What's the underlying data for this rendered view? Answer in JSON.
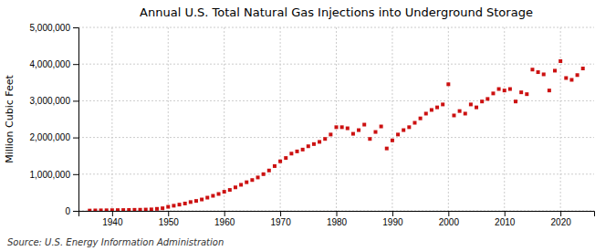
{
  "chart_data": {
    "type": "scatter",
    "title": "Annual U.S. Total Natural Gas Injections into Underground Storage",
    "ylabel": "Million Cubic Feet",
    "annotations": [
      "Source: U.S. Energy Information Administration"
    ],
    "color": "#cc1111",
    "marker": "square",
    "grid": true,
    "xlim": [
      1934,
      2026
    ],
    "ylim": [
      0,
      5000000
    ],
    "xticks": [
      1940,
      1950,
      1960,
      1970,
      1980,
      1990,
      2000,
      2010,
      2020
    ],
    "yticks": [
      0,
      {
        "value": 1000000,
        "label": "1,000,000"
      },
      {
        "value": 2000000,
        "label": "2,000,000"
      },
      {
        "value": 3000000,
        "label": "3,000,000"
      },
      {
        "value": 4000000,
        "label": "4,000,000"
      },
      {
        "value": 5000000,
        "label": "5,000,000"
      }
    ],
    "x": [
      1936,
      1937,
      1938,
      1939,
      1940,
      1941,
      1942,
      1943,
      1944,
      1945,
      1946,
      1947,
      1948,
      1949,
      1950,
      1951,
      1952,
      1953,
      1954,
      1955,
      1956,
      1957,
      1958,
      1959,
      1960,
      1961,
      1962,
      1963,
      1964,
      1965,
      1966,
      1967,
      1968,
      1969,
      1970,
      1971,
      1972,
      1973,
      1974,
      1975,
      1976,
      1977,
      1978,
      1979,
      1980,
      1981,
      1982,
      1983,
      1984,
      1985,
      1986,
      1987,
      1988,
      1989,
      1990,
      1991,
      1992,
      1993,
      1994,
      1995,
      1996,
      1997,
      1998,
      1999,
      2000,
      2001,
      2002,
      2003,
      2004,
      2005,
      2006,
      2007,
      2008,
      2009,
      2010,
      2011,
      2012,
      2013,
      2014,
      2015,
      2016,
      2017,
      2018,
      2019,
      2020,
      2021,
      2022,
      2023,
      2024
    ],
    "values": [
      8000,
      12000,
      14000,
      16000,
      18000,
      20000,
      22000,
      24000,
      28000,
      30000,
      35000,
      40000,
      55000,
      70000,
      110000,
      140000,
      170000,
      200000,
      240000,
      270000,
      310000,
      360000,
      410000,
      460000,
      520000,
      570000,
      640000,
      710000,
      780000,
      840000,
      910000,
      1000000,
      1100000,
      1220000,
      1350000,
      1440000,
      1560000,
      1620000,
      1670000,
      1760000,
      1820000,
      1880000,
      1960000,
      2080000,
      2280000,
      2280000,
      2250000,
      2100000,
      2200000,
      2350000,
      1960000,
      2150000,
      2300000,
      1700000,
      1920000,
      2080000,
      2200000,
      2280000,
      2400000,
      2520000,
      2650000,
      2750000,
      2820000,
      2900000,
      3450000,
      2600000,
      2720000,
      2650000,
      2900000,
      2820000,
      2980000,
      3050000,
      3200000,
      3320000,
      3280000,
      3320000,
      2980000,
      3230000,
      3180000,
      3850000,
      3780000,
      3720000,
      3280000,
      3820000,
      4080000,
      3620000,
      3570000,
      3700000,
      3880000
    ]
  }
}
